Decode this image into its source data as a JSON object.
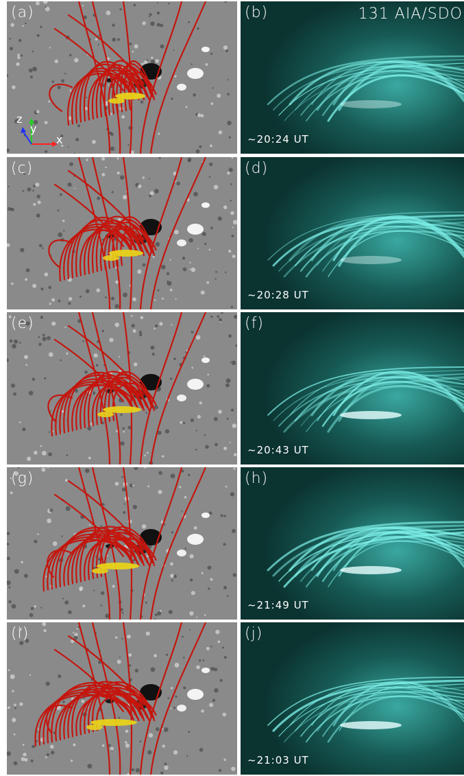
{
  "rows": [
    {
      "left_label": "(a)",
      "right_label": "(b)",
      "time": "~20:24 UT"
    },
    {
      "left_label": "(c)",
      "right_label": "(d)",
      "time": "~20:28 UT"
    },
    {
      "left_label": "(e)",
      "right_label": "(f)",
      "time": "~20:43 UT"
    },
    {
      "left_label": "(g)",
      "right_label": "(h)",
      "time": "~21:49 UT"
    },
    {
      "left_label": "(i)",
      "right_label": "(j)",
      "time": "~21:03 UT"
    }
  ],
  "instrument_label": "131 AIA/SDO",
  "axes": {
    "x": "x",
    "y": "y",
    "z": "z"
  },
  "colors": {
    "magnetogram_bg": "#8a8a8a",
    "field_line": "#c4160e",
    "flux_rope_core": "#e8d21a",
    "euv_bg": "#0b3330",
    "euv_bright": "#7ff2ea",
    "axis_x": "#ff2020",
    "axis_y": "#20d020",
    "axis_z": "#2030ff"
  }
}
